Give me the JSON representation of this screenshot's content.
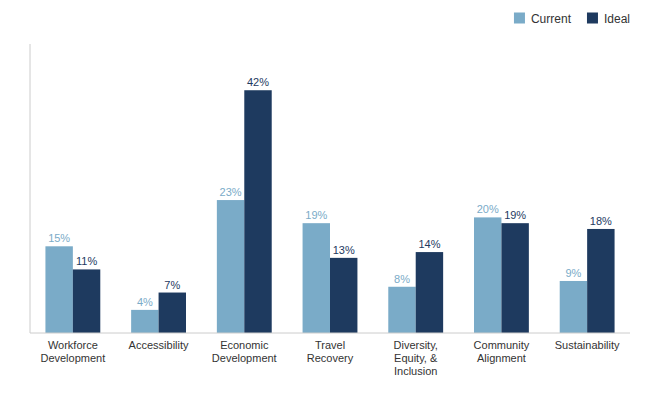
{
  "chart_data": {
    "type": "bar",
    "categories": [
      "Workforce\nDevelopment",
      "Accessibility",
      "Economic\nDevelopment",
      "Travel\nRecovery",
      "Diversity,\nEquity, &\nInclusion",
      "Community\nAlignment",
      "Sustainability"
    ],
    "series": [
      {
        "name": "Current",
        "color": "#7aabc8",
        "values": [
          15,
          4,
          23,
          19,
          8,
          20,
          9
        ],
        "value_labels": [
          "15%",
          "4%",
          "23%",
          "19%",
          "8%",
          "20%",
          "9%"
        ]
      },
      {
        "name": "Ideal",
        "color": "#1e3a5f",
        "values": [
          11,
          7,
          42,
          13,
          14,
          19,
          18
        ],
        "value_labels": [
          "11%",
          "7%",
          "42%",
          "13%",
          "14%",
          "19%",
          "18%"
        ]
      }
    ],
    "ylim": [
      0,
      50
    ],
    "yticks": [],
    "grid": false,
    "legend": "upper right",
    "data_labels": true,
    "tick_labels": "x"
  }
}
